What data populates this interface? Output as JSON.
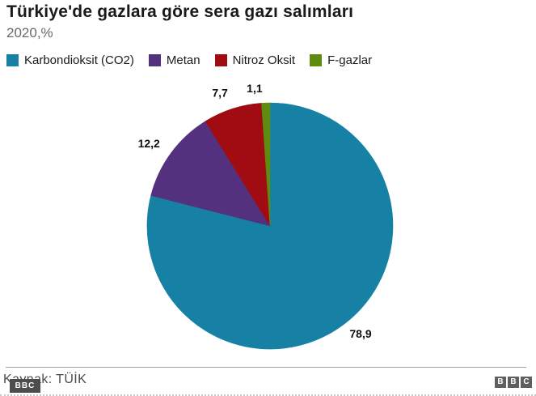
{
  "chart_data": {
    "type": "pie",
    "title": "Türkiye'de gazlara göre sera gazı salımları",
    "subtitle": "2020,%",
    "start_angle_deg": 0,
    "direction": "clockwise",
    "legend_position": "top",
    "total": 100,
    "slices": [
      {
        "label": "Karbondioksit (CO2)",
        "value": 78.9,
        "display_value": "78,9",
        "color": "#1681a5"
      },
      {
        "label": "Metan",
        "value": 12.2,
        "display_value": "12,2",
        "color": "#53317f"
      },
      {
        "label": "Nitroz Oksit",
        "value": 7.7,
        "display_value": "7,7",
        "color": "#a00c11"
      },
      {
        "label": "F-gazlar",
        "value": 1.1,
        "display_value": "1,1",
        "color": "#5e8c11"
      }
    ]
  },
  "footer": {
    "source": "Kaynak: TÜİK",
    "watermark": "BBC",
    "logo_letters": [
      "B",
      "B",
      "C"
    ]
  },
  "colors": {
    "accent_teal": "#1681a5",
    "accent_purple": "#53317f",
    "accent_red": "#a00c11",
    "accent_green": "#5e8c11",
    "divider": "#a0a0a0",
    "watermark_bg": "#4d4d4d",
    "logo_bg": "#5f5f5f",
    "label_text": "#111111"
  }
}
